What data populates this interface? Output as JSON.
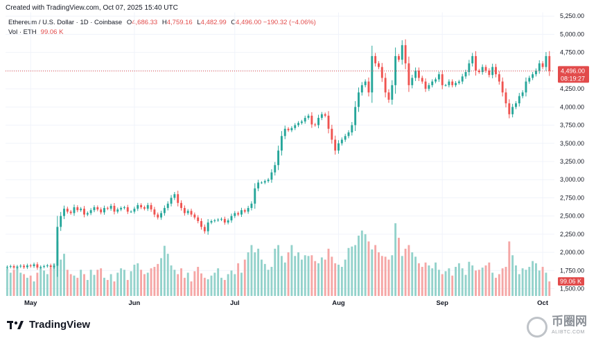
{
  "header": {
    "created": "Created with TradingView.com, Oct 07, 2025 15:40 UTC"
  },
  "legend": {
    "symbol": "Ethereum / U.S. Dollar · 1D · Coinbase",
    "open_label": "O",
    "open": "4,686.33",
    "high_label": "H",
    "high": "4,759.16",
    "low_label": "L",
    "low": "4,482.99",
    "close_label": "C",
    "close": "4,496.00",
    "change": "−190.32 (−4.06%)",
    "vol_label": "Vol · ETH",
    "vol_value": "99.06 K"
  },
  "brand": {
    "name": "TradingView"
  },
  "watermark": {
    "text": "币圈网",
    "sub": "ALIBTC.COM"
  },
  "colors": {
    "up": "#26a69a",
    "down": "#ef5350",
    "vol_up": "#93d2cb",
    "vol_down": "#f5a6a5",
    "price_line": "#e24b4b",
    "axis_text": "#131722"
  },
  "chart_data": {
    "type": "candlestick",
    "xlabel": "",
    "ylabel": "",
    "ylim": [
      1400,
      5300
    ],
    "y_ticks": [
      1500,
      1750,
      2000,
      2250,
      2500,
      2750,
      3000,
      3250,
      3500,
      3750,
      4000,
      4250,
      4500,
      4750,
      5000,
      5250
    ],
    "y_tick_labels": [
      "1,500.00",
      "1,750.00",
      "2,000.00",
      "2,250.00",
      "2,500.00",
      "2,750.00",
      "3,000.00",
      "3,250.00",
      "3,500.00",
      "3,750.00",
      "4,000.00",
      "4,250.00",
      "4,500.00",
      "4,750.00",
      "5,000.00",
      "5,250.00"
    ],
    "x_labels": [
      {
        "label": "May",
        "index": 7
      },
      {
        "label": "Jun",
        "index": 38
      },
      {
        "label": "Jul",
        "index": 68
      },
      {
        "label": "Aug",
        "index": 99
      },
      {
        "label": "Sep",
        "index": 130
      },
      {
        "label": "Oct",
        "index": 160
      }
    ],
    "current_price": 4496.0,
    "current_price_label": "4,496.00",
    "countdown_label": "08:19:27",
    "volume_label": "99.06 K",
    "grid": true,
    "legend_position": "top-left",
    "close": [
      1800,
      1810,
      1790,
      1805,
      1815,
      1795,
      1820,
      1810,
      1835,
      1790,
      1800,
      1810,
      1820,
      1795,
      1815,
      2350,
      2500,
      2600,
      2560,
      2540,
      2620,
      2580,
      2600,
      2520,
      2540,
      2580,
      2620,
      2590,
      2550,
      2610,
      2600,
      2640,
      2560,
      2590,
      2610,
      2620,
      2560,
      2560,
      2600,
      2650,
      2620,
      2600,
      2650,
      2590,
      2520,
      2480,
      2540,
      2610,
      2670,
      2750,
      2800,
      2680,
      2610,
      2540,
      2570,
      2520,
      2480,
      2430,
      2350,
      2290,
      2410,
      2430,
      2440,
      2450,
      2460,
      2410,
      2440,
      2500,
      2540,
      2520,
      2580,
      2560,
      2610,
      2670,
      2880,
      2960,
      2960,
      2980,
      3000,
      3100,
      3200,
      3400,
      3600,
      3700,
      3680,
      3710,
      3750,
      3780,
      3800,
      3850,
      3880,
      3760,
      3750,
      3850,
      3900,
      3880,
      3700,
      3550,
      3400,
      3500,
      3550,
      3600,
      3650,
      3750,
      4000,
      4200,
      4300,
      4350,
      4200,
      4700,
      4600,
      4550,
      4400,
      4200,
      4100,
      4300,
      4700,
      4650,
      4850,
      4600,
      4300,
      4400,
      4500,
      4400,
      4350,
      4250,
      4300,
      4350,
      4380,
      4450,
      4300,
      4300,
      4350,
      4300,
      4330,
      4350,
      4420,
      4480,
      4600,
      4700,
      4500,
      4480,
      4550,
      4500,
      4440,
      4550,
      4450,
      4350,
      4200,
      4050,
      3900,
      4000,
      4050,
      4150,
      4200,
      4350,
      4400,
      4450,
      4500,
      4600,
      4550,
      4700,
      4496
    ],
    "volume": [
      1780,
      1720,
      1760,
      1800,
      1720,
      1700,
      1650,
      1680,
      1600,
      1720,
      1790,
      1750,
      1700,
      1780,
      1850,
      2150,
      1900,
      1980,
      1760,
      1700,
      1680,
      1650,
      1760,
      1700,
      1620,
      1760,
      1690,
      1760,
      1780,
      1650,
      1620,
      1700,
      1600,
      1720,
      1780,
      1760,
      1620,
      1740,
      1830,
      1850,
      1760,
      1700,
      1720,
      1780,
      1800,
      1840,
      1920,
      2090,
      1980,
      1820,
      1760,
      1700,
      1780,
      1650,
      1720,
      1600,
      1740,
      1800,
      1710,
      1650,
      1630,
      1680,
      1720,
      1780,
      1650,
      1620,
      1700,
      1750,
      1700,
      1850,
      1720,
      1900,
      2000,
      2100,
      2000,
      2050,
      1900,
      1840,
      1760,
      1800,
      2050,
      2100,
      1950,
      1860,
      2000,
      2100,
      1950,
      2000,
      1900,
      1960,
      1950,
      1960,
      1880,
      1850,
      1930,
      1900,
      2050,
      1940,
      1850,
      1830,
      1800,
      1900,
      2060,
      2080,
      2100,
      2230,
      2300,
      2250,
      2150,
      2040,
      2100,
      2000,
      1950,
      1940,
      1900,
      1960,
      2400,
      2200,
      1950,
      2050,
      2100,
      2000,
      1940,
      1850,
      1800,
      1860,
      1820,
      1780,
      1860,
      1760,
      1700,
      1740,
      1780,
      1680,
      1800,
      1850,
      1780,
      1690,
      1870,
      1820,
      1750,
      1760,
      1790,
      1820,
      1860,
      1720,
      1650,
      1700,
      1780,
      1800,
      2150,
      1960,
      1820,
      1700,
      1780,
      1760,
      1800,
      1880,
      1850,
      1750,
      1800,
      1720,
      1600
    ]
  }
}
